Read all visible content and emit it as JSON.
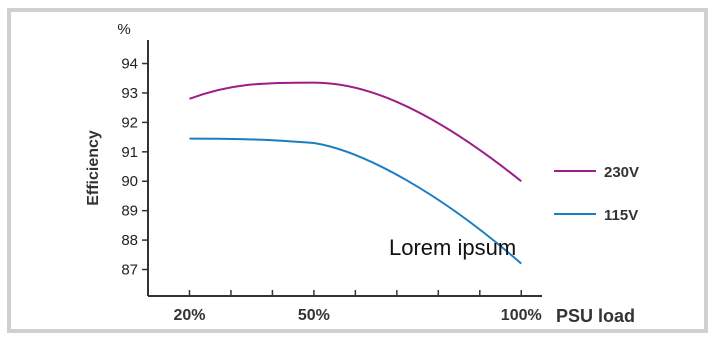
{
  "chart_data": {
    "type": "line",
    "x": [
      20,
      50,
      100
    ],
    "xticks": [
      "20%",
      "50%",
      "100%"
    ],
    "xlabel": "PSU load",
    "ylabel": "Efficiency",
    "yunit": "%",
    "yticks": [
      87,
      88,
      89,
      90,
      91,
      92,
      93,
      94
    ],
    "ylim": [
      86.1,
      94.8
    ],
    "xlim": [
      10,
      105
    ],
    "grid": false,
    "legend_position": "right",
    "series": [
      {
        "name": "230V",
        "color": "#9b1f86",
        "values": [
          92.8,
          93.35,
          90.0
        ]
      },
      {
        "name": "115V",
        "color": "#1b7ec2",
        "values": [
          91.45,
          91.3,
          87.2
        ]
      }
    ],
    "annotation": "Lorem ipsum"
  }
}
